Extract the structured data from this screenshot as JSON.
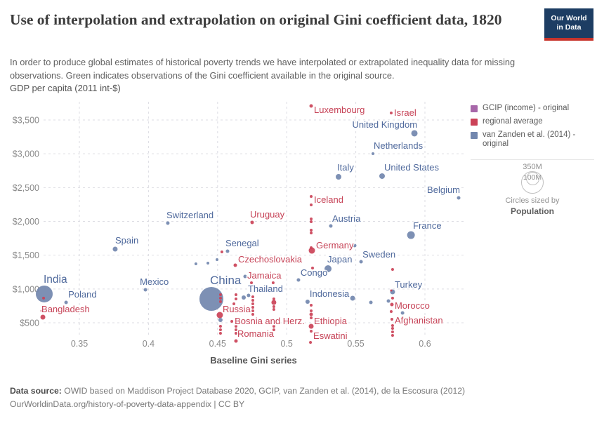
{
  "header": {
    "title": "Use of interpolation and extrapolation on original Gini coefficient data, 1820",
    "logo": {
      "line1": "Our World",
      "line2": "in Data",
      "bg": "#1d3d63",
      "bar": "#c7342c"
    }
  },
  "subtitle": "In order to produce global estimates of historical poverty trends we have interpolated or extrapolated inequality data for missing observations. Green indicates observations of the Gini coefficient available in the original source.",
  "legend": {
    "size_labels": [
      "350M",
      "100M"
    ],
    "caption": "Circles sized by",
    "sized_by": "Population"
  },
  "footer": {
    "source_label": "Data source:",
    "source_text": " OWID based on Maddison Project Database 2020, GCIP, van Zanden et al. (2014), de la Escosura (2012)",
    "line2": "OurWorldinData.org/history-of-poverty-data-appendix | CC BY"
  },
  "chart_data": {
    "type": "scatter",
    "title": "Use of interpolation and extrapolation on original Gini coefficient data, 1820",
    "xlabel": "Baseline Gini series",
    "ylabel": "GDP per capita (2011 int-$)",
    "xlim": [
      0.32,
      0.63
    ],
    "ylim": [
      150,
      3750
    ],
    "x_ticks": [
      0.35,
      0.4,
      0.45,
      0.5,
      0.55,
      0.6
    ],
    "x_tick_labels": [
      "0.35",
      "0.4",
      "0.45",
      "0.5",
      "0.55",
      "0.6"
    ],
    "y_ticks": [
      500,
      1000,
      1500,
      2000,
      2500,
      3000,
      3500
    ],
    "y_tick_labels": [
      "$500",
      "$1,000",
      "$1,500",
      "$2,000",
      "$2,500",
      "$3,000",
      "$3,500"
    ],
    "grid": "dashed",
    "legend_position": "right",
    "size_by": "Population",
    "series": [
      {
        "name": "GCIP (income) - original",
        "color": "#a767a9",
        "label_color": "#9c5a9e",
        "points": []
      },
      {
        "name": "regional average",
        "color": "#cb4257",
        "label_color": "#c64256",
        "points": [
          {
            "country": "Luxembourg",
            "gini": 0.5177,
            "gdp": 3708,
            "r": 2.5,
            "dx": 4,
            "dy": 10
          },
          {
            "country": "Israel",
            "gini": 0.5756,
            "gdp": 3604,
            "r": 2,
            "dx": 4,
            "dy": 4
          },
          {
            "country": "Iceland",
            "gini": 0.5177,
            "gdp": 2368,
            "r": 2,
            "dx": 4,
            "dy": 9
          },
          {
            "gini": 0.5177,
            "gdp": 2244,
            "r": 2
          },
          {
            "gini": 0.5177,
            "gdp": 2036,
            "r": 2
          },
          {
            "gini": 0.5177,
            "gdp": 1995,
            "r": 2
          },
          {
            "gini": 0.5177,
            "gdp": 1870,
            "r": 2
          },
          {
            "gini": 0.5177,
            "gdp": 1829,
            "r": 2
          },
          {
            "gini": 0.5177,
            "gdp": 1611,
            "r": 2
          },
          {
            "country": "Germany",
            "gini": 0.5182,
            "gdp": 1569,
            "r": 4.5,
            "dx": 6,
            "dy": -3
          },
          {
            "gini": 0.5187,
            "gdp": 1310,
            "r": 2
          },
          {
            "gini": 0.5177,
            "gdp": 760,
            "r": 2
          },
          {
            "gini": 0.5177,
            "gdp": 676,
            "r": 2
          },
          {
            "gini": 0.5177,
            "gdp": 624,
            "r": 2.5
          },
          {
            "gini": 0.5177,
            "gdp": 572,
            "r": 2
          },
          {
            "country": "Ethiopia",
            "gini": 0.5177,
            "gdp": 448,
            "r": 3.5,
            "dx": 4,
            "dy": -3
          },
          {
            "gini": 0.5177,
            "gdp": 375,
            "r": 2
          },
          {
            "country": "Eswatini",
            "gini": 0.5172,
            "gdp": 209,
            "r": 2,
            "dx": 4,
            "dy": -5
          },
          {
            "country": "Uruguay",
            "gini": 0.475,
            "gdp": 1984,
            "r": 2.5,
            "dx": -3,
            "dy": -7
          },
          {
            "country": "Jamaica",
            "gini": 0.4745,
            "gdp": 1092,
            "r": 2,
            "dx": -6,
            "dy": -6
          },
          {
            "gini": 0.4755,
            "gdp": 884,
            "r": 2
          },
          {
            "gini": 0.4755,
            "gdp": 832,
            "r": 2
          },
          {
            "gini": 0.4755,
            "gdp": 780,
            "r": 2
          },
          {
            "gini": 0.4755,
            "gdp": 728,
            "r": 2
          },
          {
            "gini": 0.4755,
            "gdp": 676,
            "r": 2
          },
          {
            "gini": 0.4755,
            "gdp": 624,
            "r": 2
          },
          {
            "country": "Czechoslovakia",
            "gini": 0.4628,
            "gdp": 1351,
            "r": 2.5,
            "dx": 4,
            "dy": -4
          },
          {
            "gini": 0.4633,
            "gdp": 915,
            "r": 2
          },
          {
            "gini": 0.4633,
            "gdp": 853,
            "r": 2
          },
          {
            "gini": 0.4618,
            "gdp": 780,
            "r": 2
          },
          {
            "gini": 0.4633,
            "gdp": 448,
            "r": 2
          },
          {
            "gini": 0.4633,
            "gdp": 396,
            "r": 2
          },
          {
            "gini": 0.4633,
            "gdp": 344,
            "r": 2
          },
          {
            "country": "Romania",
            "gini": 0.4633,
            "gdp": 230,
            "r": 2.5,
            "dx": 2,
            "dy": -6
          },
          {
            "country": "Bosnia and Herz.",
            "gini": 0.4603,
            "gdp": 521,
            "r": 2,
            "dx": 4,
            "dy": 4
          },
          {
            "gini": 0.4902,
            "gdp": 1092,
            "r": 2
          },
          {
            "gini": 0.4907,
            "gdp": 853,
            "r": 2
          },
          {
            "gini": 0.4907,
            "gdp": 801,
            "r": 3.5
          },
          {
            "gini": 0.4907,
            "gdp": 739,
            "r": 2
          },
          {
            "gini": 0.4907,
            "gdp": 697,
            "r": 2
          },
          {
            "gini": 0.4907,
            "gdp": 448,
            "r": 2
          },
          {
            "gini": 0.4907,
            "gdp": 396,
            "r": 2
          },
          {
            "gini": 0.4521,
            "gdp": 915,
            "r": 2
          },
          {
            "gini": 0.4521,
            "gdp": 864,
            "r": 2
          },
          {
            "gini": 0.4521,
            "gdp": 812,
            "r": 2
          },
          {
            "country": "Russia",
            "gini": 0.4516,
            "gdp": 614,
            "r": 4.5,
            "dx": 4,
            "dy": -4
          },
          {
            "gini": 0.4521,
            "gdp": 448,
            "r": 2
          },
          {
            "gini": 0.4521,
            "gdp": 396,
            "r": 2
          },
          {
            "gini": 0.4521,
            "gdp": 344,
            "r": 2
          },
          {
            "gini": 0.4531,
            "gdp": 1548,
            "r": 2
          },
          {
            "gini": 0.3241,
            "gdp": 864,
            "r": 2
          },
          {
            "country": "Bangladesh",
            "gini": 0.3236,
            "gdp": 583,
            "r": 3.5,
            "dx": -2,
            "dy": -7
          },
          {
            "gini": 0.3226,
            "gdp": 676,
            "r": 1.5
          },
          {
            "gini": 0.5766,
            "gdp": 1289,
            "r": 2
          },
          {
            "gini": 0.5756,
            "gdp": 978,
            "r": 1.5
          },
          {
            "gini": 0.5766,
            "gdp": 864,
            "r": 2
          },
          {
            "country": "Morocco",
            "gini": 0.5761,
            "gdp": 770,
            "r": 2.5,
            "dx": 4,
            "dy": 6
          },
          {
            "gini": 0.5756,
            "gdp": 666,
            "r": 2
          },
          {
            "country": "Afghanistan",
            "gini": 0.5761,
            "gdp": 552,
            "r": 2,
            "dx": 4,
            "dy": 6
          },
          {
            "gini": 0.5766,
            "gdp": 458,
            "r": 2
          },
          {
            "gini": 0.5766,
            "gdp": 417,
            "r": 2
          },
          {
            "gini": 0.5766,
            "gdp": 365,
            "r": 2
          },
          {
            "gini": 0.5766,
            "gdp": 313,
            "r": 2
          }
        ]
      },
      {
        "name": "van Zanden et al. (2014) - original",
        "color": "#7287ae",
        "label_color": "#4f699c",
        "points": [
          {
            "country": "United Kingdom",
            "gini": 0.5924,
            "gdp": 3303,
            "r": 4.5,
            "dx": 4,
            "dy": -8,
            "anchor": "end"
          },
          {
            "country": "Netherlands",
            "gini": 0.5624,
            "gdp": 3002,
            "r": 2,
            "dx": 1,
            "dy": -7
          },
          {
            "country": "Italy",
            "gini": 0.5375,
            "gdp": 2659,
            "r": 4,
            "dx": -2,
            "dy": -9
          },
          {
            "country": "United States",
            "gini": 0.569,
            "gdp": 2670,
            "r": 4,
            "dx": 3,
            "dy": -8
          },
          {
            "country": "Belgium",
            "gini": 0.6244,
            "gdp": 2348,
            "r": 2.5,
            "dx": 2,
            "dy": -7,
            "anchor": "end"
          },
          {
            "country": "Austria",
            "gini": 0.5319,
            "gdp": 1932,
            "r": 2.5,
            "dx": 2,
            "dy": -6
          },
          {
            "country": "Switzerland",
            "gini": 0.414,
            "gdp": 1974,
            "r": 2.5,
            "dx": -2,
            "dy": -7
          },
          {
            "country": "France",
            "gini": 0.5899,
            "gdp": 1797,
            "r": 5.5,
            "dx": 3,
            "dy": -9
          },
          {
            "country": "Spain",
            "gini": 0.3759,
            "gdp": 1590,
            "r": 3.5,
            "dx": 0,
            "dy": -8
          },
          {
            "country": "Senegal",
            "gini": 0.4572,
            "gdp": 1559,
            "r": 2.5,
            "dx": -3,
            "dy": -7
          },
          {
            "country": "Sweden",
            "gini": 0.5538,
            "gdp": 1403,
            "r": 2.5,
            "dx": 2,
            "dy": -6
          },
          {
            "country": "Japan",
            "gini": 0.5299,
            "gdp": 1299,
            "r": 5,
            "dx": -1,
            "dy": -9
          },
          {
            "country": "Congo",
            "gini": 0.5085,
            "gdp": 1133,
            "r": 2.5,
            "dx": 3,
            "dy": -6
          },
          {
            "country": "Mexico",
            "gini": 0.3978,
            "gdp": 988,
            "r": 2.5,
            "dx": -8,
            "dy": -7
          },
          {
            "country": "India",
            "gini": 0.3246,
            "gdp": 926,
            "r": 12,
            "dx": -1,
            "dy": -16,
            "fs": 15.5
          },
          {
            "country": "China",
            "gini": 0.4455,
            "gdp": 853,
            "r": 17,
            "dx": -2,
            "dy": -21,
            "fs": 17
          },
          {
            "country": "Thailand",
            "gini": 0.4689,
            "gdp": 874,
            "r": 3,
            "dx": 6,
            "dy": -8
          },
          {
            "country": "Indonesia",
            "gini": 0.5151,
            "gdp": 811,
            "r": 3,
            "dx": 3,
            "dy": -7
          },
          {
            "country": "Turkey",
            "gini": 0.5766,
            "gdp": 957,
            "r": 3.5,
            "dx": 3,
            "dy": -6
          },
          {
            "country": "Poland",
            "gini": 0.3404,
            "gdp": 801,
            "r": 2.5,
            "dx": 3,
            "dy": -7
          },
          {
            "gini": 0.4343,
            "gdp": 1372,
            "r": 2
          },
          {
            "gini": 0.443,
            "gdp": 1382,
            "r": 2
          },
          {
            "gini": 0.4496,
            "gdp": 1434,
            "r": 2
          },
          {
            "gini": 0.4699,
            "gdp": 1185,
            "r": 2.5
          },
          {
            "gini": 0.4724,
            "gdp": 905,
            "r": 2.5
          },
          {
            "gini": 0.5492,
            "gdp": 1642,
            "r": 2.5
          },
          {
            "gini": 0.5477,
            "gdp": 863,
            "r": 3.5
          },
          {
            "gini": 0.5609,
            "gdp": 801,
            "r": 2.5
          },
          {
            "gini": 0.5736,
            "gdp": 822,
            "r": 2.5
          },
          {
            "gini": 0.5838,
            "gdp": 645,
            "r": 2.5
          },
          {
            "gini": 0.4521,
            "gdp": 541,
            "r": 3
          }
        ]
      }
    ]
  }
}
